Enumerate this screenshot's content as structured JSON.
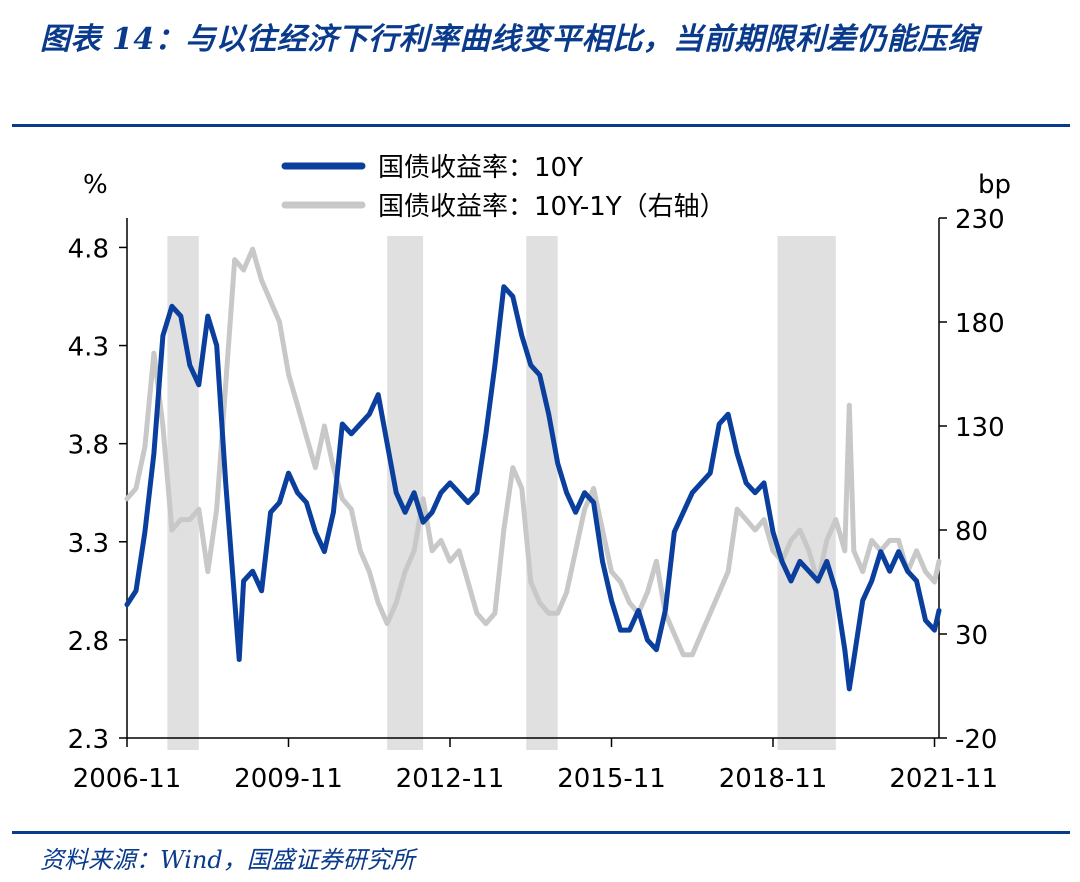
{
  "header": {
    "title": "图表 14：与以往经济下行利率曲线变平相比，当前期限利差仍能压缩"
  },
  "footer": {
    "source": "资料来源：Wind，国盛证券研究所"
  },
  "colors": {
    "brand": "#0a3a8c",
    "series_10y": "#0b3f9e",
    "series_10y_light": "#5577b8",
    "series_spread": "#c8c8c8",
    "shade": "#e0e0e0"
  },
  "chart_data": {
    "type": "line",
    "left_unit": "%",
    "right_unit": "bp",
    "xticks": [
      "2006-11",
      "2009-11",
      "2012-11",
      "2015-11",
      "2018-11",
      "2021-11"
    ],
    "yticks_left": [
      "2.3",
      "2.8",
      "3.3",
      "3.8",
      "4.3",
      "4.8"
    ],
    "yticks_right": [
      "-20",
      "30",
      "80",
      "130",
      "180",
      "230"
    ],
    "ylim_left": [
      2.3,
      4.95
    ],
    "ylim_right": [
      -20,
      230
    ],
    "xlim": [
      "2006-11",
      "2021-12"
    ],
    "shaded_periods": [
      [
        "2007-08",
        "2008-03"
      ],
      [
        "2011-09",
        "2012-05"
      ],
      [
        "2014-04",
        "2014-11"
      ],
      [
        "2018-12",
        "2020-01"
      ]
    ],
    "series": [
      {
        "name": "国债收益率：10Y",
        "axis": "left",
        "x": [
          "2006-11",
          "2007-01",
          "2007-03",
          "2007-05",
          "2007-07",
          "2007-09",
          "2007-11",
          "2008-01",
          "2008-03",
          "2008-05",
          "2008-07",
          "2008-09",
          "2008-11",
          "2008-12",
          "2009-01",
          "2009-03",
          "2009-05",
          "2009-07",
          "2009-09",
          "2009-11",
          "2010-01",
          "2010-03",
          "2010-05",
          "2010-07",
          "2010-09",
          "2010-11",
          "2011-01",
          "2011-03",
          "2011-05",
          "2011-07",
          "2011-09",
          "2011-11",
          "2012-01",
          "2012-03",
          "2012-05",
          "2012-07",
          "2012-09",
          "2012-11",
          "2013-01",
          "2013-03",
          "2013-05",
          "2013-07",
          "2013-09",
          "2013-11",
          "2014-01",
          "2014-03",
          "2014-05",
          "2014-07",
          "2014-09",
          "2014-11",
          "2015-01",
          "2015-03",
          "2015-05",
          "2015-07",
          "2015-09",
          "2015-11",
          "2016-01",
          "2016-03",
          "2016-05",
          "2016-07",
          "2016-09",
          "2016-11",
          "2017-01",
          "2017-03",
          "2017-05",
          "2017-07",
          "2017-09",
          "2017-11",
          "2018-01",
          "2018-03",
          "2018-05",
          "2018-07",
          "2018-09",
          "2018-11",
          "2019-01",
          "2019-03",
          "2019-05",
          "2019-07",
          "2019-09",
          "2019-11",
          "2020-01",
          "2020-03",
          "2020-04",
          "2020-05",
          "2020-07",
          "2020-09",
          "2020-11",
          "2021-01",
          "2021-03",
          "2021-05",
          "2021-07",
          "2021-09",
          "2021-11",
          "2021-12"
        ],
        "values": [
          2.98,
          3.05,
          3.35,
          3.75,
          4.35,
          4.5,
          4.45,
          4.2,
          4.1,
          4.45,
          4.3,
          3.6,
          3.0,
          2.7,
          3.1,
          3.15,
          3.05,
          3.45,
          3.5,
          3.65,
          3.55,
          3.5,
          3.35,
          3.25,
          3.45,
          3.9,
          3.85,
          3.9,
          3.95,
          4.05,
          3.8,
          3.55,
          3.45,
          3.55,
          3.4,
          3.45,
          3.55,
          3.6,
          3.55,
          3.5,
          3.55,
          3.85,
          4.2,
          4.6,
          4.55,
          4.35,
          4.2,
          4.15,
          3.95,
          3.7,
          3.55,
          3.45,
          3.55,
          3.5,
          3.2,
          3.0,
          2.85,
          2.85,
          2.95,
          2.8,
          2.75,
          2.95,
          3.35,
          3.45,
          3.55,
          3.6,
          3.65,
          3.9,
          3.95,
          3.75,
          3.6,
          3.55,
          3.6,
          3.35,
          3.2,
          3.1,
          3.2,
          3.15,
          3.1,
          3.2,
          3.05,
          2.75,
          2.55,
          2.7,
          3.0,
          3.1,
          3.25,
          3.15,
          3.25,
          3.15,
          3.1,
          2.9,
          2.85,
          2.95
        ]
      },
      {
        "name": "国债收益率：10Y-1Y（右轴）",
        "axis": "right",
        "x": [
          "2006-11",
          "2007-01",
          "2007-03",
          "2007-05",
          "2007-07",
          "2007-09",
          "2007-11",
          "2008-01",
          "2008-03",
          "2008-05",
          "2008-07",
          "2008-09",
          "2008-11",
          "2009-01",
          "2009-03",
          "2009-05",
          "2009-07",
          "2009-09",
          "2009-11",
          "2010-01",
          "2010-03",
          "2010-05",
          "2010-07",
          "2010-09",
          "2010-11",
          "2011-01",
          "2011-03",
          "2011-05",
          "2011-07",
          "2011-09",
          "2011-11",
          "2012-01",
          "2012-03",
          "2012-05",
          "2012-07",
          "2012-09",
          "2012-11",
          "2013-01",
          "2013-03",
          "2013-05",
          "2013-07",
          "2013-09",
          "2013-11",
          "2014-01",
          "2014-03",
          "2014-05",
          "2014-07",
          "2014-09",
          "2014-11",
          "2015-01",
          "2015-03",
          "2015-05",
          "2015-07",
          "2015-09",
          "2015-11",
          "2016-01",
          "2016-03",
          "2016-05",
          "2016-07",
          "2016-09",
          "2016-11",
          "2017-01",
          "2017-03",
          "2017-05",
          "2017-07",
          "2017-09",
          "2017-11",
          "2018-01",
          "2018-03",
          "2018-05",
          "2018-07",
          "2018-09",
          "2018-11",
          "2019-01",
          "2019-03",
          "2019-05",
          "2019-07",
          "2019-09",
          "2019-11",
          "2020-01",
          "2020-03",
          "2020-04",
          "2020-05",
          "2020-07",
          "2020-09",
          "2020-11",
          "2021-01",
          "2021-03",
          "2021-05",
          "2021-07",
          "2021-09",
          "2021-11",
          "2021-12"
        ],
        "values": [
          95,
          100,
          120,
          165,
          130,
          80,
          85,
          85,
          90,
          60,
          90,
          150,
          210,
          205,
          215,
          200,
          190,
          180,
          155,
          140,
          125,
          110,
          130,
          110,
          95,
          90,
          70,
          60,
          45,
          35,
          45,
          60,
          70,
          95,
          70,
          75,
          65,
          70,
          55,
          40,
          35,
          40,
          80,
          110,
          100,
          55,
          45,
          40,
          40,
          50,
          70,
          90,
          100,
          80,
          60,
          55,
          45,
          40,
          50,
          65,
          40,
          30,
          20,
          20,
          30,
          40,
          50,
          60,
          90,
          85,
          80,
          85,
          70,
          65,
          75,
          80,
          70,
          55,
          75,
          85,
          70,
          140,
          70,
          60,
          75,
          70,
          75,
          75,
          60,
          70,
          60,
          55,
          65
        ]
      }
    ]
  }
}
